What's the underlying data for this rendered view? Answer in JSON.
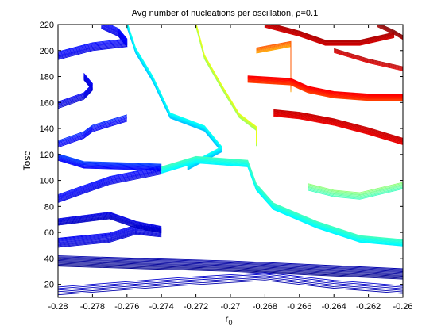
{
  "chart_data": {
    "type": "contour",
    "title": "Avg number of nucleations per oscillation, ρ=0.1",
    "xlabel_base": "r",
    "xlabel_sub": "0",
    "ylabel": "Tosc",
    "xlim": [
      -0.28,
      -0.26
    ],
    "ylim": [
      10,
      220
    ],
    "xticks": [
      -0.28,
      -0.278,
      -0.276,
      -0.274,
      -0.272,
      -0.27,
      -0.268,
      -0.266,
      -0.264,
      -0.262,
      -0.26
    ],
    "xtick_labels": [
      "-0.28",
      "-0.278",
      "-0.276",
      "-0.274",
      "-0.272",
      "-0.27",
      "-0.268",
      "-0.266",
      "-0.264",
      "-0.262",
      "-0.26"
    ],
    "yticks": [
      20,
      40,
      60,
      80,
      100,
      120,
      140,
      160,
      180,
      200,
      220
    ],
    "ytick_labels": [
      "20",
      "40",
      "60",
      "80",
      "100",
      "120",
      "140",
      "160",
      "180",
      "200",
      "220"
    ],
    "colormap": "jet",
    "colormap_stops": [
      "#00008f",
      "#0000ff",
      "#00ffff",
      "#ffff00",
      "#ff0000",
      "#800000"
    ],
    "contour_levels": 50,
    "bands": [
      {
        "level": 0.02,
        "points": [
          [
            -0.28,
            38
          ],
          [
            -0.275,
            36
          ],
          [
            -0.27,
            34
          ],
          [
            -0.265,
            31
          ],
          [
            -0.26,
            28
          ]
        ],
        "spread": 8,
        "n": 12
      },
      {
        "level": 0.08,
        "points": [
          [
            -0.28,
            15
          ],
          [
            -0.273,
            22
          ],
          [
            -0.268,
            26
          ],
          [
            -0.264,
            20
          ],
          [
            -0.26,
            16
          ]
        ],
        "spread": 6,
        "n": 6
      },
      {
        "level": 0.15,
        "points": [
          [
            -0.28,
            52
          ],
          [
            -0.277,
            56
          ],
          [
            -0.2755,
            62
          ],
          [
            -0.274,
            60
          ]
        ],
        "spread": 7,
        "n": 12
      },
      {
        "level": 0.12,
        "points": [
          [
            -0.28,
            68
          ],
          [
            -0.277,
            73
          ],
          [
            -0.2755,
            66
          ],
          [
            -0.274,
            62
          ]
        ],
        "spread": 5,
        "n": 10
      },
      {
        "level": 0.18,
        "points": [
          [
            -0.28,
            86
          ],
          [
            -0.2785,
            93
          ],
          [
            -0.277,
            100
          ],
          [
            -0.274,
            108
          ]
        ],
        "spread": 6,
        "n": 10
      },
      {
        "level": 0.22,
        "points": [
          [
            -0.28,
            118
          ],
          [
            -0.2785,
            112
          ],
          [
            -0.276,
            111
          ],
          [
            -0.274,
            110
          ]
        ],
        "spread": 5,
        "n": 10
      },
      {
        "level": 0.2,
        "points": [
          [
            -0.28,
            128
          ],
          [
            -0.2785,
            135
          ],
          [
            -0.278,
            140
          ],
          [
            -0.276,
            148
          ]
        ],
        "spread": 5,
        "n": 8
      },
      {
        "level": 0.15,
        "points": [
          [
            -0.28,
            158
          ],
          [
            -0.2785,
            165
          ],
          [
            -0.278,
            172
          ],
          [
            -0.2785,
            180
          ]
        ],
        "spread": 5,
        "n": 8
      },
      {
        "level": 0.18,
        "points": [
          [
            -0.28,
            196
          ],
          [
            -0.278,
            203
          ],
          [
            -0.276,
            206
          ],
          [
            -0.2765,
            214
          ],
          [
            -0.2775,
            220
          ]
        ],
        "spread": 6,
        "n": 10
      },
      {
        "level": 0.38,
        "points": [
          [
            -0.276,
            220
          ],
          [
            -0.2755,
            200
          ],
          [
            -0.2745,
            178
          ],
          [
            -0.2735,
            150
          ],
          [
            -0.2715,
            140
          ],
          [
            -0.2705,
            124
          ],
          [
            -0.2725,
            110
          ]
        ],
        "spread": 4,
        "n": 12
      },
      {
        "level": 0.42,
        "points": [
          [
            -0.274,
            108
          ],
          [
            -0.272,
            116
          ],
          [
            -0.269,
            113
          ],
          [
            -0.2685,
            95
          ],
          [
            -0.2675,
            80
          ],
          [
            -0.265,
            66
          ],
          [
            -0.2625,
            55
          ],
          [
            -0.26,
            52
          ]
        ],
        "spread": 5,
        "n": 14
      },
      {
        "level": 0.48,
        "points": [
          [
            -0.2655,
            95
          ],
          [
            -0.264,
            90
          ],
          [
            -0.2625,
            88
          ],
          [
            -0.26,
            96
          ]
        ],
        "spread": 5,
        "n": 8
      },
      {
        "level": 0.55,
        "points": [
          [
            -0.272,
            220
          ],
          [
            -0.2715,
            195
          ],
          [
            -0.2705,
            172
          ],
          [
            -0.2695,
            150
          ],
          [
            -0.2685,
            140
          ],
          [
            -0.2685,
            128
          ]
        ],
        "spread": 3,
        "n": 10
      },
      {
        "level": 0.7,
        "points": [
          [
            -0.2685,
            200
          ],
          [
            -0.2665,
            205
          ],
          [
            -0.2665,
            185
          ],
          [
            -0.2665,
            170
          ]
        ],
        "spread": 4,
        "n": 8
      },
      {
        "level": 0.78,
        "points": [
          [
            -0.269,
            178
          ],
          [
            -0.2665,
            176
          ],
          [
            -0.2655,
            170
          ],
          [
            -0.264,
            166
          ],
          [
            -0.262,
            164
          ],
          [
            -0.26,
            164
          ]
        ],
        "spread": 5,
        "n": 14
      },
      {
        "level": 0.86,
        "points": [
          [
            -0.2675,
            152
          ],
          [
            -0.266,
            150
          ],
          [
            -0.264,
            145
          ],
          [
            -0.262,
            138
          ],
          [
            -0.26,
            130
          ]
        ],
        "spread": 5,
        "n": 12
      },
      {
        "level": 0.9,
        "points": [
          [
            -0.268,
            220
          ],
          [
            -0.266,
            213
          ],
          [
            -0.2645,
            206
          ],
          [
            -0.2625,
            206
          ],
          [
            -0.2605,
            212
          ]
        ],
        "spread": 4,
        "n": 10
      },
      {
        "level": 0.97,
        "points": [
          [
            -0.2615,
            220
          ],
          [
            -0.2605,
            214
          ],
          [
            -0.26,
            210
          ]
        ],
        "spread": 3,
        "n": 6
      },
      {
        "level": 0.88,
        "points": [
          [
            -0.264,
            200
          ],
          [
            -0.262,
            192
          ],
          [
            -0.26,
            186
          ]
        ],
        "spread": 3,
        "n": 6
      }
    ]
  }
}
